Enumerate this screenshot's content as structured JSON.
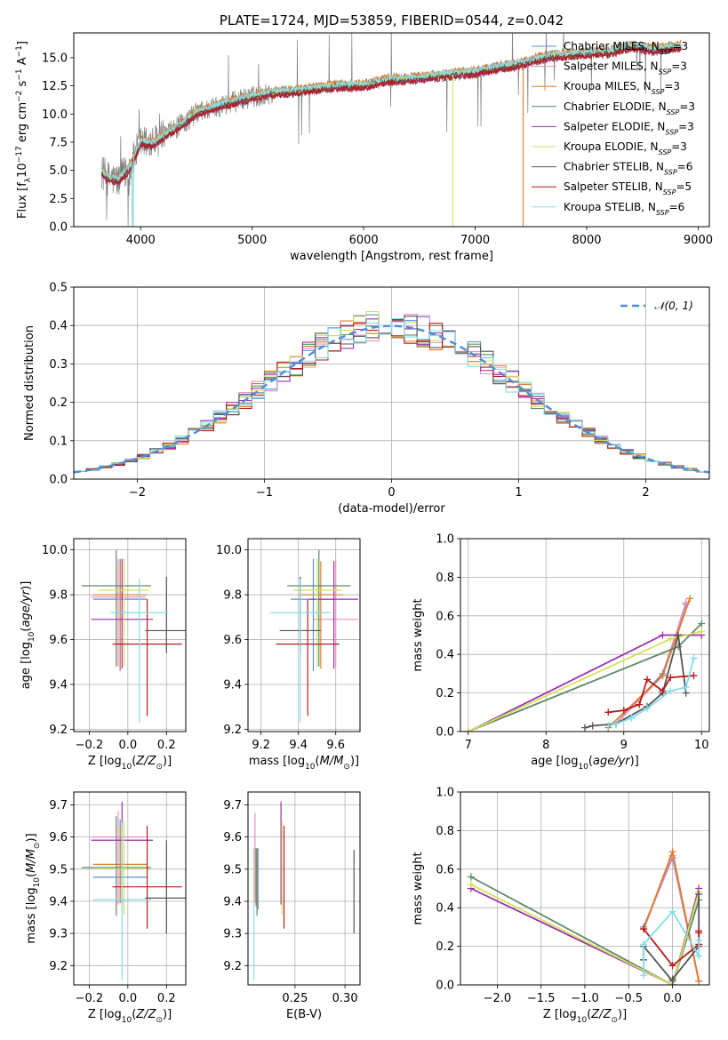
{
  "chart_data": [
    {
      "type": "line",
      "id": "spectrum",
      "title": "PLATE=1724, MJD=53859, FIBERID=0544, z=0.042",
      "xlabel": "wavelength [Angstrom, rest frame]",
      "ylabel": "Flux [f_λ 10^-17 erg cm^-2 s^-1 A^-1]",
      "xlim": [
        3400,
        9100
      ],
      "ylim": [
        0,
        17.2
      ],
      "xticks": [
        "4000",
        "5000",
        "6000",
        "7000",
        "8000",
        "9000"
      ],
      "yticks": [
        "0.0",
        "2.5",
        "5.0",
        "7.5",
        "10.0",
        "12.5",
        "15.0"
      ],
      "data_envelope": {
        "x": [
          3650,
          3700,
          3800,
          3900,
          4000,
          4100,
          4200,
          4300,
          4400,
          4500,
          4600,
          4800,
          5000,
          5200,
          5400,
          5600,
          5800,
          6000,
          6200,
          6400,
          6600,
          6800,
          7000,
          7200,
          7400,
          7600,
          7800,
          8000,
          8200,
          8400,
          8600,
          8850
        ],
        "y": [
          4.9,
          4.3,
          4.1,
          5.2,
          7.5,
          7.3,
          8.0,
          8.6,
          9.3,
          10.1,
          10.4,
          11.0,
          11.5,
          11.9,
          12.0,
          12.3,
          12.5,
          12.5,
          13.0,
          13.1,
          13.3,
          13.5,
          13.7,
          14.1,
          14.4,
          15.0,
          15.2,
          15.4,
          15.5,
          16.0,
          15.7,
          16.0
        ]
      },
      "series": [
        {
          "name": "Chabrier MILES, N_SSP=3",
          "color": "#5a8fd6",
          "offset": 0.0
        },
        {
          "name": "Salpeter MILES, N_SSP=3",
          "color": "#e88fc7",
          "offset": 0.15
        },
        {
          "name": "Kroupa MILES, N_SSP=3",
          "color": "#e07b28",
          "offset": 0.3
        },
        {
          "name": "Chabrier ELODIE, N_SSP=3",
          "color": "#5e8a66",
          "offset": -0.1
        },
        {
          "name": "Salpeter ELODIE, N_SSP=3",
          "color": "#9b2fae",
          "offset": -0.2
        },
        {
          "name": "Kroupa ELODIE, N_SSP=3",
          "color": "#d4e157",
          "offset": 0.05
        },
        {
          "name": "Chabrier STELIB, N_SSP=6",
          "color": "#555555",
          "offset": -0.05
        },
        {
          "name": "Salpeter STELIB, N_SSP=5",
          "color": "#b71c1c",
          "offset": -0.25
        },
        {
          "name": "Kroupa STELIB, N_SSP=6",
          "color": "#80deea",
          "offset": 0.2
        }
      ],
      "legend_position": "top-right"
    },
    {
      "type": "histogram",
      "id": "residuals",
      "xlabel": "(data-model)/error",
      "ylabel": "Normed distribution",
      "xlim": [
        -2.5,
        2.5
      ],
      "ylim": [
        0,
        0.5
      ],
      "xticks": [
        "−2",
        "−1",
        "0",
        "1",
        "2"
      ],
      "yticks": [
        "0.0",
        "0.1",
        "0.2",
        "0.3",
        "0.4",
        "0.5"
      ],
      "bin_width": 0.1,
      "reference_curve": {
        "name": "𝒩(0, 1)",
        "color": "#4f8fd4",
        "style": "dashed"
      },
      "legend_position": "top-right",
      "grid": true
    },
    {
      "type": "errorbar",
      "id": "age-vs-Z",
      "xlabel": "Z [log10(Z/Z☉)]",
      "ylabel": "age  [log10(age/yr)]",
      "xlim": [
        -0.28,
        0.3
      ],
      "ylim": [
        9.19,
        10.05
      ],
      "xticks": [
        "−0.2",
        "0.0",
        "0.2"
      ],
      "yticks": [
        "9.2",
        "9.4",
        "9.6",
        "9.8",
        "10.0"
      ],
      "points": [
        {
          "x": -0.04,
          "xerr": 0.14,
          "y": 9.78,
          "yerr": [
            0.32,
            0.18
          ],
          "color": "#5a8fd6"
        },
        {
          "x": -0.05,
          "xerr": 0.14,
          "y": 9.79,
          "yerr": [
            0.31,
            0.17
          ],
          "color": "#e88fc7"
        },
        {
          "x": -0.04,
          "xerr": 0.14,
          "y": 9.8,
          "yerr": [
            0.33,
            0.15
          ],
          "color": "#e07b28"
        },
        {
          "x": -0.06,
          "xerr": 0.18,
          "y": 9.84,
          "yerr": [
            0.36,
            0.16
          ],
          "color": "#5e8a66"
        },
        {
          "x": -0.03,
          "xerr": 0.16,
          "y": 9.69,
          "yerr": [
            0.22,
            0.27
          ],
          "color": "#9b2fae"
        },
        {
          "x": -0.02,
          "xerr": 0.13,
          "y": 9.82,
          "yerr": [
            0.34,
            0.14
          ],
          "color": "#d4e157"
        },
        {
          "x": 0.2,
          "xerr": 0.11,
          "y": 9.64,
          "yerr": [
            0.1,
            0.24
          ],
          "color": "#555555"
        },
        {
          "x": 0.1,
          "xerr": 0.18,
          "y": 9.58,
          "yerr": [
            0.32,
            0.2
          ],
          "color": "#b71c1c"
        },
        {
          "x": 0.06,
          "xerr": 0.15,
          "y": 9.72,
          "yerr": [
            0.49,
            0.15
          ],
          "color": "#80deea"
        }
      ],
      "grid": true
    },
    {
      "type": "errorbar",
      "id": "age-vs-mass",
      "xlabel": "mass [log10(M/M☉)]",
      "ylabel": "",
      "xlim": [
        9.13,
        9.73
      ],
      "ylim": [
        9.19,
        10.05
      ],
      "xticks": [
        "9.2",
        "9.4",
        "9.6"
      ],
      "yticks": [
        "9.2",
        "9.4",
        "9.6",
        "9.8",
        "10.0"
      ],
      "points": [
        {
          "x": 9.48,
          "xerr": 0.12,
          "y": 9.78,
          "yerr": [
            0.32,
            0.18
          ],
          "color": "#5a8fd6"
        },
        {
          "x": 9.6,
          "xerr": 0.12,
          "y": 9.69,
          "yerr": [
            0.21,
            0.27
          ],
          "color": "#e88fc7"
        },
        {
          "x": 9.52,
          "xerr": 0.12,
          "y": 9.8,
          "yerr": [
            0.33,
            0.15
          ],
          "color": "#e07b28"
        },
        {
          "x": 9.51,
          "xerr": 0.17,
          "y": 9.84,
          "yerr": [
            0.36,
            0.16
          ],
          "color": "#5e8a66"
        },
        {
          "x": 9.59,
          "xerr": 0.13,
          "y": 9.78,
          "yerr": [
            0.31,
            0.17
          ],
          "color": "#9b2fae"
        },
        {
          "x": 9.5,
          "xerr": 0.13,
          "y": 9.82,
          "yerr": [
            0.34,
            0.14
          ],
          "color": "#d4e157"
        },
        {
          "x": 9.41,
          "xerr": 0.11,
          "y": 9.64,
          "yerr": [
            0.1,
            0.24
          ],
          "color": "#555555"
        },
        {
          "x": 9.45,
          "xerr": 0.17,
          "y": 9.58,
          "yerr": [
            0.32,
            0.2
          ],
          "color": "#b71c1c"
        },
        {
          "x": 9.41,
          "xerr": 0.16,
          "y": 9.72,
          "yerr": [
            0.49,
            0.15
          ],
          "color": "#80deea"
        }
      ],
      "grid": true
    },
    {
      "type": "line",
      "id": "weight-vs-age",
      "xlabel": "age  [log10(age/yr)]",
      "ylabel": "mass weight",
      "xlim": [
        6.9,
        10.1
      ],
      "ylim": [
        0,
        1.0
      ],
      "xticks": [
        "7",
        "8",
        "9",
        "10"
      ],
      "yticks": [
        "0.0",
        "0.2",
        "0.4",
        "0.6",
        "0.8",
        "1.0"
      ],
      "series": [
        {
          "color": "#5a8fd6",
          "x": [
            8.9,
            9.5,
            9.8
          ],
          "y": [
            0.04,
            0.3,
            0.66
          ]
        },
        {
          "color": "#e88fc7",
          "x": [
            8.9,
            9.5,
            9.8
          ],
          "y": [
            0.04,
            0.29,
            0.67
          ]
        },
        {
          "color": "#e07b28",
          "x": [
            8.8,
            9.5,
            9.85
          ],
          "y": [
            0.02,
            0.29,
            0.69
          ]
        },
        {
          "color": "#5e8a66",
          "x": [
            7.0,
            9.7,
            10.0
          ],
          "y": [
            0.0,
            0.44,
            0.56
          ]
        },
        {
          "color": "#9b2fae",
          "x": [
            7.0,
            9.5,
            10.0
          ],
          "y": [
            0.0,
            0.5,
            0.5
          ]
        },
        {
          "color": "#d4e157",
          "x": [
            7.0,
            9.6,
            10.0
          ],
          "y": [
            0.0,
            0.48,
            0.52
          ]
        },
        {
          "color": "#555555",
          "x": [
            8.5,
            8.6,
            8.9,
            9.3,
            9.5,
            9.7,
            9.8
          ],
          "y": [
            0.02,
            0.03,
            0.04,
            0.13,
            0.2,
            0.5,
            0.2
          ]
        },
        {
          "color": "#b71c1c",
          "x": [
            8.8,
            9.0,
            9.2,
            9.3,
            9.5,
            9.6,
            9.9
          ],
          "y": [
            0.1,
            0.11,
            0.14,
            0.27,
            0.21,
            0.28,
            0.29
          ]
        },
        {
          "color": "#80deea",
          "x": [
            8.8,
            8.9,
            9.1,
            9.3,
            9.6,
            9.8,
            9.9
          ],
          "y": [
            0.03,
            0.04,
            0.07,
            0.12,
            0.21,
            0.23,
            0.38
          ]
        }
      ],
      "grid": true
    },
    {
      "type": "errorbar",
      "id": "mass-vs-Z",
      "xlabel": "Z [log10(Z/Z☉)]",
      "ylabel": "mass [log10(M/M☉)]",
      "xlim": [
        -0.28,
        0.3
      ],
      "ylim": [
        9.14,
        9.74
      ],
      "xticks": [
        "−0.2",
        "0.0",
        "0.2"
      ],
      "yticks": [
        "9.2",
        "9.3",
        "9.4",
        "9.5",
        "9.6",
        "9.7"
      ],
      "points": [
        {
          "x": -0.04,
          "xerr": 0.14,
          "y": 9.475,
          "yerr": [
            0.08,
            0.18
          ],
          "color": "#5a8fd6"
        },
        {
          "x": -0.05,
          "xerr": 0.14,
          "y": 9.6,
          "yerr": [
            0.21,
            0.08
          ],
          "color": "#e88fc7"
        },
        {
          "x": -0.04,
          "xerr": 0.14,
          "y": 9.515,
          "yerr": [
            0.12,
            0.12
          ],
          "color": "#e07b28"
        },
        {
          "x": -0.06,
          "xerr": 0.18,
          "y": 9.505,
          "yerr": [
            0.15,
            0.16
          ],
          "color": "#5e8a66"
        },
        {
          "x": -0.03,
          "xerr": 0.16,
          "y": 9.59,
          "yerr": [
            0.2,
            0.12
          ],
          "color": "#9b2fae"
        },
        {
          "x": -0.02,
          "xerr": 0.13,
          "y": 9.5,
          "yerr": [
            0.14,
            0.15
          ],
          "color": "#d4e157"
        },
        {
          "x": 0.2,
          "xerr": 0.11,
          "y": 9.41,
          "yerr": [
            0.11,
            0.18
          ],
          "color": "#555555"
        },
        {
          "x": 0.1,
          "xerr": 0.18,
          "y": 9.445,
          "yerr": [
            0.13,
            0.19
          ],
          "color": "#b71c1c"
        },
        {
          "x": -0.03,
          "xerr": 0.15,
          "y": 9.405,
          "yerr": [
            0.25,
            0.24
          ],
          "color": "#80deea"
        }
      ],
      "grid": true
    },
    {
      "type": "errorbar",
      "id": "mass-vs-EBV",
      "xlabel": "E(B-V)",
      "ylabel": "",
      "xlim": [
        0.203,
        0.315
      ],
      "ylim": [
        9.14,
        9.74
      ],
      "xticks": [
        "0.25",
        "0.30"
      ],
      "yticks": [
        "9.2",
        "9.3",
        "9.4",
        "9.5",
        "9.6",
        "9.7"
      ],
      "points": [
        {
          "x": 0.21,
          "y": 9.475,
          "yerr": [
            0.08,
            0.2
          ],
          "color": "#e88fc7"
        },
        {
          "x": 0.211,
          "y": 9.515,
          "yerr": [
            0.13,
            0.05
          ],
          "color": "#e07b28"
        },
        {
          "x": 0.212,
          "y": 9.505,
          "yerr": [
            0.15,
            0.06
          ],
          "color": "#5e8a66"
        },
        {
          "x": 0.213,
          "y": 9.475,
          "yerr": [
            0.1,
            0.09
          ],
          "color": "#5a8fd6"
        },
        {
          "x": 0.209,
          "y": 9.405,
          "yerr": [
            0.25,
            0.16
          ],
          "color": "#80deea"
        },
        {
          "x": 0.236,
          "y": 9.59,
          "yerr": [
            0.2,
            0.12
          ],
          "color": "#9b2fae"
        },
        {
          "x": 0.237,
          "y": 9.5,
          "yerr": [
            0.14,
            0.15
          ],
          "color": "#d4e157"
        },
        {
          "x": 0.239,
          "y": 9.445,
          "yerr": [
            0.13,
            0.19
          ],
          "color": "#b71c1c"
        },
        {
          "x": 0.309,
          "y": 9.41,
          "yerr": [
            0.11,
            0.15
          ],
          "color": "#555555"
        }
      ],
      "grid": true
    },
    {
      "type": "line",
      "id": "weight-vs-Z",
      "xlabel": "Z [log10(Z/Z☉)]",
      "ylabel": "mass weight",
      "xlim": [
        -2.42,
        0.42
      ],
      "ylim": [
        0,
        1.0
      ],
      "xticks": [
        "−2.0",
        "−1.5",
        "−1.0",
        "−0.5",
        "0.0"
      ],
      "yticks": [
        "0.0",
        "0.2",
        "0.4",
        "0.6",
        "0.8",
        "1.0"
      ],
      "series": [
        {
          "color": "#5a8fd6",
          "x": [
            -0.33,
            0.0,
            0.3
          ],
          "y": [
            0.3,
            0.66,
            0.02
          ]
        },
        {
          "color": "#e88fc7",
          "x": [
            -0.33,
            0.0,
            0.3
          ],
          "y": [
            0.29,
            0.67,
            0.02
          ]
        },
        {
          "color": "#e07b28",
          "x": [
            -0.33,
            0.0,
            0.3
          ],
          "y": [
            0.29,
            0.69,
            0.02
          ]
        },
        {
          "color": "#5e8a66",
          "x": [
            -2.3,
            0.0,
            0.3
          ],
          "y": [
            0.56,
            0.0,
            0.44
          ]
        },
        {
          "color": "#9b2fae",
          "x": [
            -2.3,
            0.0,
            0.3
          ],
          "y": [
            0.5,
            0.0,
            0.5
          ]
        },
        {
          "color": "#d4e157",
          "x": [
            -2.3,
            0.0,
            0.3
          ],
          "y": [
            0.52,
            0.0,
            0.48
          ]
        },
        {
          "color": "#555555",
          "x": [
            -0.33,
            -0.33,
            0.0,
            0.0,
            0.3,
            0.3
          ],
          "y": [
            0.13,
            0.2,
            0.02,
            0.03,
            0.2,
            0.47
          ]
        },
        {
          "color": "#b71c1c",
          "x": [
            -0.33,
            0.0,
            0.3,
            0.3,
            0.3
          ],
          "y": [
            0.29,
            0.1,
            0.21,
            0.27,
            0.28
          ]
        },
        {
          "color": "#80deea",
          "x": [
            -0.33,
            -0.33,
            0.0,
            0.3,
            0.3
          ],
          "y": [
            0.05,
            0.21,
            0.38,
            0.15,
            0.23
          ]
        }
      ],
      "grid": true
    }
  ]
}
